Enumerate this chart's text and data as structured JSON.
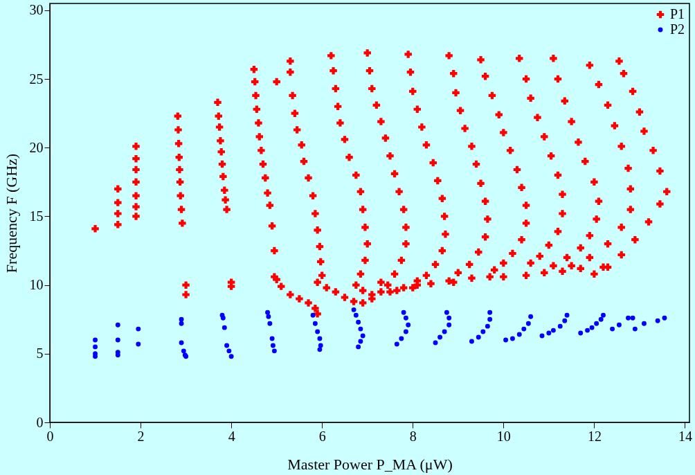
{
  "chart_data": {
    "type": "scatter",
    "xlabel": "Master Power P_MA (μW)",
    "ylabel": "Frequency F (GHz)",
    "xlim": [
      0,
      14.1
    ],
    "ylim": [
      0,
      30.5
    ],
    "xticks": [
      0,
      2,
      4,
      6,
      8,
      10,
      12,
      14
    ],
    "yticks": [
      0,
      5,
      10,
      15,
      20,
      25,
      30
    ],
    "grid": false,
    "legend": "top right",
    "series": [
      {
        "name": "P1",
        "color": "#ff0000",
        "marker": "cross",
        "x": [
          1.0,
          1.5,
          1.5,
          1.5,
          1.5,
          1.9,
          1.9,
          1.9,
          1.9,
          1.9,
          1.9,
          1.9,
          2.82,
          2.83,
          2.84,
          2.85,
          2.86,
          2.87,
          2.88,
          2.9,
          2.92,
          3.0,
          3.0,
          3.7,
          3.72,
          3.74,
          3.76,
          3.78,
          3.8,
          3.82,
          3.85,
          3.87,
          3.9,
          4.0,
          4.0,
          4.5,
          4.52,
          4.54,
          4.56,
          4.6,
          4.62,
          4.66,
          4.7,
          4.75,
          4.8,
          4.85,
          4.9,
          4.95,
          4.95,
          5.0,
          5.1,
          5.3,
          5.5,
          5.7,
          5.85,
          5.9,
          5.0,
          5.3,
          5.3,
          5.35,
          5.4,
          5.45,
          5.55,
          5.6,
          5.7,
          5.8,
          5.85,
          5.9,
          5.95,
          5.97,
          6.0,
          5.9,
          6.1,
          6.3,
          6.5,
          6.7,
          6.9,
          7.1,
          7.3,
          7.3,
          6.2,
          6.25,
          6.3,
          6.35,
          6.4,
          6.5,
          6.6,
          6.75,
          6.85,
          6.9,
          6.95,
          7.0,
          6.95,
          6.85,
          6.75,
          6.9,
          7.1,
          7.5,
          7.8,
          8.1,
          7.0,
          7.05,
          7.1,
          7.2,
          7.3,
          7.4,
          7.5,
          7.6,
          7.7,
          7.8,
          7.85,
          7.85,
          7.75,
          7.6,
          7.45,
          7.65,
          8.0,
          8.4,
          8.8,
          7.9,
          7.95,
          8.0,
          8.1,
          8.2,
          8.3,
          8.45,
          8.55,
          8.65,
          8.7,
          8.72,
          8.65,
          8.5,
          8.3,
          8.1,
          8.9,
          9.3,
          9.7,
          8.8,
          8.9,
          8.95,
          9.05,
          9.15,
          9.3,
          9.4,
          9.5,
          9.6,
          9.65,
          9.6,
          9.45,
          9.25,
          9.0,
          10.0,
          10.5,
          9.5,
          9.6,
          9.75,
          9.9,
          10.0,
          10.15,
          10.3,
          10.4,
          10.5,
          10.5,
          10.4,
          10.2,
          10.0,
          9.8,
          10.9,
          11.3,
          10.35,
          10.5,
          10.6,
          10.75,
          10.9,
          11.05,
          11.2,
          11.3,
          11.3,
          11.2,
          11.0,
          10.8,
          10.6,
          11.7,
          11.1,
          11.2,
          11.35,
          11.5,
          11.65,
          11.8,
          12.0,
          12.1,
          12.05,
          11.9,
          11.7,
          11.4,
          11.1,
          12.2,
          11.9,
          12.1,
          12.3,
          12.45,
          12.6,
          12.75,
          12.8,
          12.8,
          12.6,
          12.3,
          11.9,
          11.5,
          12.55,
          12.65,
          12.85,
          13.0,
          13.1,
          13.3,
          13.45,
          13.6,
          13.45,
          13.2,
          12.9,
          12.6,
          12.3,
          12.0
        ],
        "values": [
          14.1,
          17.0,
          16.0,
          15.2,
          14.4,
          20.1,
          19.2,
          18.4,
          17.5,
          16.5,
          15.7,
          15.0,
          22.3,
          21.3,
          20.3,
          19.3,
          18.4,
          17.5,
          16.5,
          15.5,
          14.5,
          10.0,
          9.3,
          23.3,
          22.3,
          21.5,
          20.5,
          19.7,
          18.8,
          17.9,
          16.9,
          16.2,
          15.5,
          10.2,
          9.9,
          25.7,
          24.8,
          23.8,
          22.8,
          21.8,
          20.8,
          19.8,
          18.8,
          17.8,
          16.7,
          15.8,
          14.3,
          12.5,
          10.6,
          10.4,
          9.9,
          9.3,
          9.0,
          8.7,
          8.3,
          7.9,
          24.8,
          26.3,
          25.5,
          23.8,
          22.5,
          21.3,
          20.2,
          19.0,
          17.8,
          16.5,
          15.2,
          14.0,
          12.8,
          11.7,
          10.7,
          10.2,
          9.8,
          9.5,
          9.1,
          8.8,
          8.7,
          9.0,
          9.5,
          10.2,
          26.7,
          25.6,
          24.3,
          23.0,
          21.8,
          20.6,
          19.3,
          18.0,
          16.8,
          15.5,
          14.2,
          13.0,
          11.8,
          10.8,
          10.0,
          9.6,
          9.3,
          9.5,
          9.8,
          10.0,
          26.9,
          25.6,
          24.3,
          23.1,
          21.9,
          20.7,
          19.4,
          18.1,
          16.8,
          15.5,
          14.2,
          13.0,
          11.8,
          10.8,
          10.0,
          9.6,
          9.8,
          10.1,
          10.3,
          26.8,
          25.5,
          24.1,
          22.8,
          21.5,
          20.2,
          18.9,
          17.6,
          16.3,
          15.0,
          13.7,
          12.5,
          11.5,
          10.7,
          10.3,
          10.2,
          10.5,
          10.6,
          26.7,
          25.4,
          24.0,
          22.7,
          21.4,
          20.1,
          18.8,
          17.4,
          16.1,
          14.8,
          13.5,
          12.4,
          11.5,
          10.9,
          10.6,
          10.7,
          26.4,
          25.2,
          23.8,
          22.4,
          21.1,
          19.8,
          18.4,
          17.1,
          15.8,
          14.5,
          13.3,
          12.3,
          11.6,
          11.1,
          10.9,
          11.0,
          26.5,
          25.0,
          23.6,
          22.2,
          20.8,
          19.4,
          18.0,
          16.6,
          15.2,
          13.9,
          12.9,
          12.1,
          11.6,
          11.2,
          26.5,
          25.0,
          23.4,
          21.9,
          20.4,
          19.0,
          17.5,
          16.1,
          14.8,
          13.6,
          12.7,
          12.0,
          11.4,
          11.3,
          26.0,
          24.6,
          23.1,
          21.6,
          20.1,
          18.5,
          17.0,
          15.5,
          14.2,
          13.0,
          12.0,
          11.4,
          26.3,
          25.4,
          24.1,
          22.6,
          21.2,
          19.8,
          18.3,
          16.8,
          15.9,
          14.6,
          13.3,
          12.2,
          11.3,
          10.8
        ]
      },
      {
        "name": "P2",
        "color": "#0000ff",
        "marker": "circle",
        "x": [
          1.0,
          1.0,
          1.0,
          1.0,
          1.5,
          1.5,
          1.5,
          1.5,
          1.95,
          1.95,
          2.9,
          2.9,
          2.9,
          2.95,
          2.98,
          3.0,
          3.8,
          3.82,
          3.85,
          3.9,
          3.95,
          4.0,
          4.8,
          4.82,
          4.85,
          4.9,
          4.92,
          4.95,
          5.8,
          5.85,
          5.9,
          5.95,
          5.97,
          5.95,
          6.7,
          6.75,
          6.8,
          6.85,
          6.9,
          6.85,
          6.8,
          7.8,
          7.85,
          7.9,
          7.85,
          7.75,
          7.65,
          8.75,
          8.8,
          8.8,
          8.7,
          8.6,
          8.5,
          9.3,
          9.45,
          9.55,
          9.65,
          9.7,
          9.7,
          10.05,
          10.2,
          10.35,
          10.45,
          10.55,
          10.6,
          10.85,
          11.0,
          11.1,
          11.25,
          11.35,
          11.4,
          11.7,
          11.85,
          11.95,
          12.05,
          12.15,
          12.2,
          12.4,
          12.55,
          12.75,
          12.85,
          12.9,
          13.1,
          13.4,
          13.55
        ],
        "values": [
          6.0,
          5.5,
          5.0,
          4.8,
          7.1,
          6.0,
          5.1,
          4.9,
          6.8,
          5.7,
          7.5,
          7.2,
          5.8,
          5.2,
          4.9,
          4.8,
          7.8,
          7.6,
          6.9,
          5.6,
          5.2,
          4.8,
          8.0,
          7.7,
          7.2,
          6.1,
          5.6,
          5.2,
          7.8,
          7.2,
          6.6,
          6.1,
          5.6,
          5.3,
          8.2,
          7.8,
          7.3,
          6.8,
          6.3,
          5.9,
          5.5,
          8.0,
          7.6,
          7.1,
          6.6,
          6.1,
          5.7,
          8.0,
          7.6,
          7.1,
          6.6,
          6.2,
          5.8,
          5.9,
          6.2,
          6.6,
          7.0,
          7.5,
          8.0,
          6.0,
          6.1,
          6.4,
          6.8,
          7.2,
          7.7,
          6.3,
          6.5,
          6.7,
          7.0,
          7.4,
          7.8,
          6.5,
          6.7,
          6.9,
          7.2,
          7.5,
          7.8,
          6.8,
          7.1,
          7.6,
          7.6,
          6.8,
          7.2,
          7.4,
          7.6
        ]
      }
    ]
  }
}
